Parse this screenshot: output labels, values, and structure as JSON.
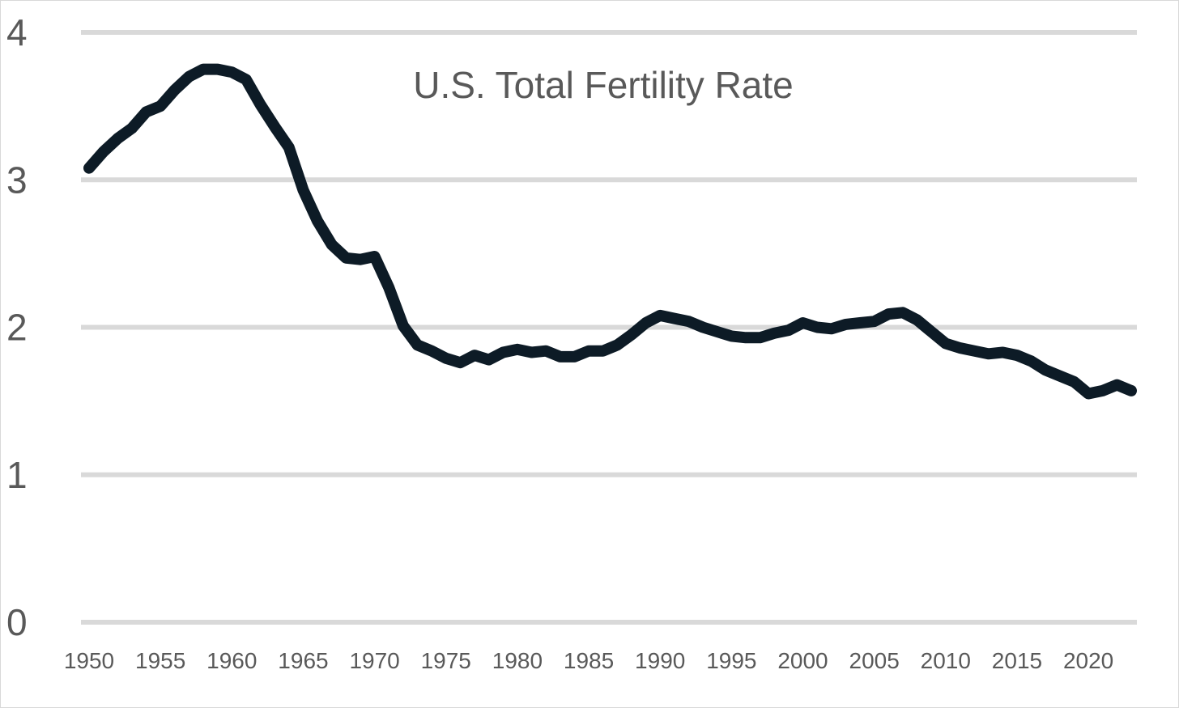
{
  "chart_data": {
    "type": "line",
    "title": "U.S. Total Fertility Rate",
    "xlabel": "",
    "ylabel": "",
    "ylim": [
      0,
      4
    ],
    "xlim": [
      1950,
      2023
    ],
    "grid": true,
    "legend": "none",
    "y_ticks": [
      "0",
      "1",
      "2",
      "3",
      "4"
    ],
    "x_ticks": [
      "1950",
      "1955",
      "1960",
      "1965",
      "1970",
      "1975",
      "1980",
      "1985",
      "1990",
      "1995",
      "2000",
      "2005",
      "2010",
      "2015",
      "2020"
    ],
    "line_color": "#0d1b26",
    "grid_color": "#d9d9d9",
    "text_color": "#595959",
    "series": [
      {
        "x": [
          1950,
          1951,
          1952,
          1953,
          1954,
          1955,
          1956,
          1957,
          1958,
          1959,
          1960,
          1961,
          1962,
          1963,
          1964,
          1965,
          1966,
          1967,
          1968,
          1969,
          1970,
          1971,
          1972,
          1973,
          1974,
          1975,
          1976,
          1977,
          1978,
          1979,
          1980,
          1981,
          1982,
          1983,
          1984,
          1985,
          1986,
          1987,
          1988,
          1989,
          1990,
          1991,
          1992,
          1993,
          1994,
          1995,
          1996,
          1997,
          1998,
          1999,
          2000,
          2001,
          2002,
          2003,
          2004,
          2005,
          2006,
          2007,
          2008,
          2009,
          2010,
          2011,
          2012,
          2013,
          2014,
          2015,
          2016,
          2017,
          2018,
          2019,
          2020,
          2021,
          2022,
          2023
        ],
        "y": [
          3.08,
          3.19,
          3.28,
          3.35,
          3.46,
          3.5,
          3.61,
          3.7,
          3.75,
          3.75,
          3.73,
          3.68,
          3.51,
          3.36,
          3.22,
          2.93,
          2.72,
          2.56,
          2.47,
          2.46,
          2.48,
          2.27,
          2.01,
          1.88,
          1.84,
          1.79,
          1.76,
          1.81,
          1.78,
          1.83,
          1.85,
          1.83,
          1.84,
          1.8,
          1.8,
          1.84,
          1.84,
          1.88,
          1.95,
          2.03,
          2.08,
          2.06,
          2.04,
          2.0,
          1.97,
          1.94,
          1.93,
          1.93,
          1.96,
          1.98,
          2.03,
          2.0,
          1.99,
          2.02,
          2.03,
          2.04,
          2.09,
          2.1,
          2.05,
          1.97,
          1.89,
          1.86,
          1.84,
          1.82,
          1.83,
          1.81,
          1.77,
          1.71,
          1.67,
          1.63,
          1.55,
          1.57,
          1.61,
          1.57
        ]
      }
    ]
  }
}
